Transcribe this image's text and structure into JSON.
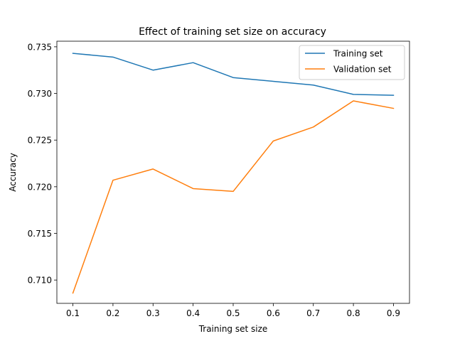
{
  "chart_data": {
    "type": "line",
    "title": "Effect of training set size on accuracy",
    "xlabel": "Training set size",
    "ylabel": "Accuracy",
    "x": [
      0.1,
      0.2,
      0.3,
      0.4,
      0.5,
      0.6,
      0.7,
      0.8,
      0.9
    ],
    "xticks": [
      "0.1",
      "0.2",
      "0.3",
      "0.4",
      "0.5",
      "0.6",
      "0.7",
      "0.8",
      "0.9"
    ],
    "yticks": [
      "0.710",
      "0.715",
      "0.720",
      "0.725",
      "0.730",
      "0.735"
    ],
    "xlim": [
      0.06,
      0.94
    ],
    "ylim": [
      0.7075,
      0.7356
    ],
    "grid": false,
    "legend_position": "top-right",
    "series": [
      {
        "name": "Training set",
        "color": "#1f77b4",
        "values": [
          0.7343,
          0.7339,
          0.7325,
          0.7333,
          0.7317,
          0.7313,
          0.7309,
          0.7299,
          0.7298
        ]
      },
      {
        "name": "Validation set",
        "color": "#ff7f0e",
        "values": [
          0.7086,
          0.7207,
          0.7219,
          0.7198,
          0.7195,
          0.7249,
          0.7264,
          0.7292,
          0.7284
        ]
      }
    ]
  }
}
